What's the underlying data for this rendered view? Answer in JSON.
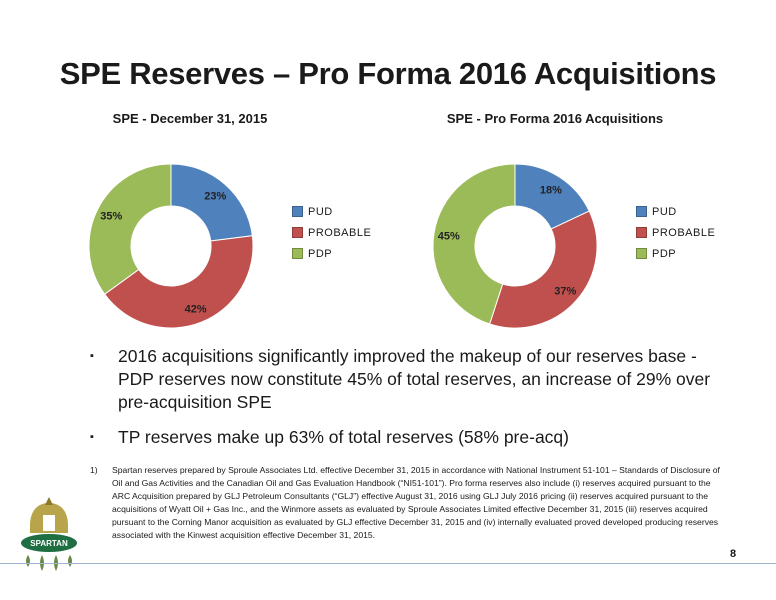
{
  "title": "SPE Reserves – Pro Forma 2016 Acquisitions",
  "chart_data": [
    {
      "type": "pie",
      "title": "SPE - December 31, 2015",
      "categories": [
        "PUD",
        "PROBABLE",
        "PDP"
      ],
      "values": [
        23,
        42,
        35
      ],
      "labels": [
        "23%",
        "42%",
        "35%"
      ],
      "colors": [
        "#4f81bd",
        "#c0504d",
        "#9bbb59"
      ],
      "legend": "right"
    },
    {
      "type": "pie",
      "title": "SPE - Pro Forma 2016 Acquisitions",
      "categories": [
        "PUD",
        "PROBABLE",
        "PDP"
      ],
      "values": [
        18,
        37,
        45
      ],
      "labels": [
        "18%",
        "37%",
        "45%"
      ],
      "colors": [
        "#4f81bd",
        "#c0504d",
        "#9bbb59"
      ],
      "legend": "right"
    }
  ],
  "bullets": [
    "2016 acquisitions significantly improved the makeup of our reserves base - PDP reserves now constitute 45% of total reserves, an increase of 29% over pre-acquisition SPE",
    "TP reserves make up 63% of total reserves (58% pre-acq)"
  ],
  "bullet_marker": "▪",
  "footnote": {
    "number": "1)",
    "text": "Spartan reserves prepared by Sproule Associates Ltd. effective December 31, 2015 in accordance with National Instrument 51-101 – Standards of Disclosure of Oil and Gas Activities and the Canadian Oil and Gas Evaluation Handbook (“NI51-101”). Pro forma reserves also include (i) reserves acquired pursuant to the ARC Acquisition prepared by GLJ Petroleum Consultants (“GLJ”) effective August 31, 2016 using GLJ July 2016 pricing (ii) reserves acquired pursuant to the acquisitions of Wyatt Oil + Gas Inc., and the Winmore assets as evaluated by Sproule Associates Limited effective December 31, 2015 (iii) reserves acquired pursuant to the Corning Manor acquisition as evaluated by GLJ effective December 31, 2015 and (iv) internally evaluated proved developed producing reserves associated with the Kinwest acquisition effective December 31, 2015."
  },
  "logo": {
    "text": "SPARTAN"
  },
  "page_number": "8"
}
